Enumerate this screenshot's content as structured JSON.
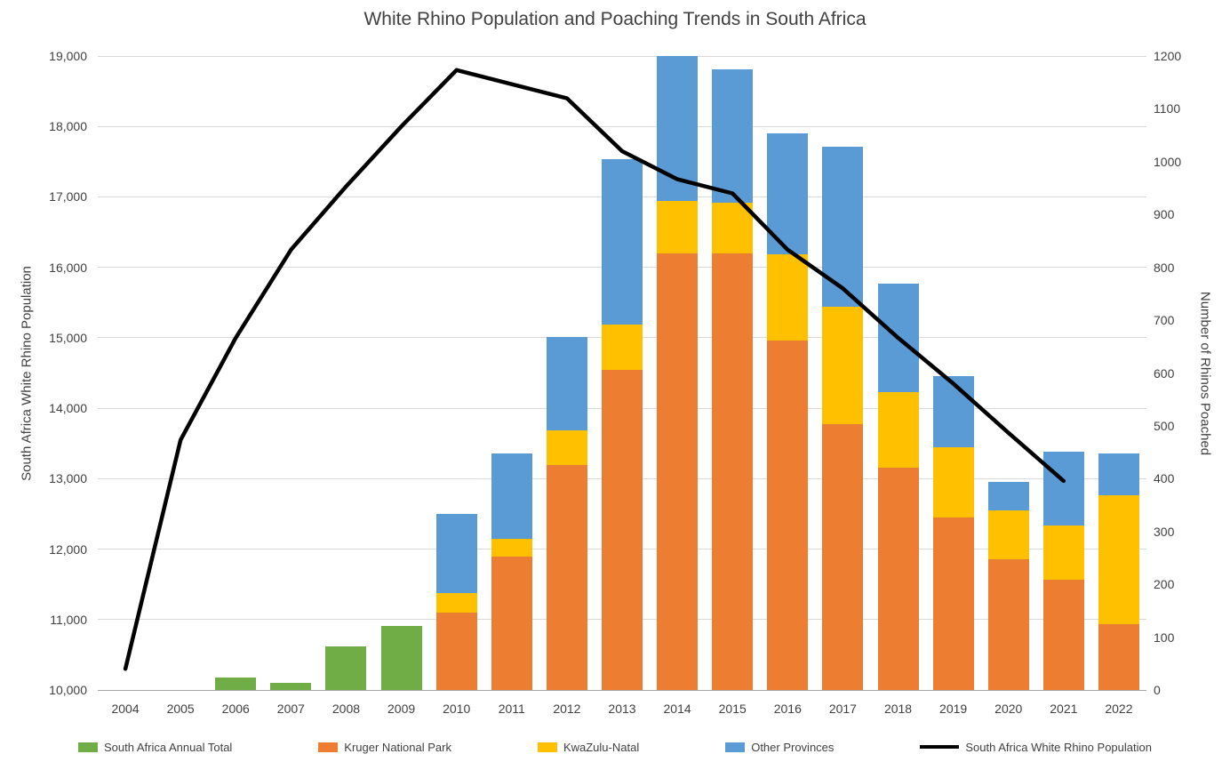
{
  "chart_data": {
    "type": "bar",
    "subtype": "stacked-bars-with-secondary-line",
    "title": "White Rhino Population and Poaching Trends in South Africa",
    "grid": true,
    "legend_position": "bottom",
    "categories": [
      "2004",
      "2005",
      "2006",
      "2007",
      "2008",
      "2009",
      "2010",
      "2011",
      "2012",
      "2013",
      "2014",
      "2015",
      "2016",
      "2017",
      "2018",
      "2019",
      "2020",
      "2021",
      "2022"
    ],
    "left_axis": {
      "label": "South Africa White Rhino Population",
      "min": 10000,
      "max": 19000,
      "step": 1000,
      "tick_labels": [
        "10,000",
        "11,000",
        "12,000",
        "13,000",
        "14,000",
        "15,000",
        "16,000",
        "17,000",
        "18,000",
        "19,000"
      ]
    },
    "right_axis": {
      "label": "Number of Rhinos Poached",
      "min": 0,
      "max": 1200,
      "step": 100,
      "tick_labels": [
        "0",
        "100",
        "200",
        "300",
        "400",
        "500",
        "600",
        "700",
        "800",
        "900",
        "1000",
        "1100",
        "1200"
      ]
    },
    "series": [
      {
        "id": "annual-total",
        "name": "South Africa Annual Total",
        "color": "#70ad47",
        "axis": "right",
        "values": [
          null,
          null,
          24,
          13,
          83,
          122,
          null,
          null,
          null,
          null,
          null,
          null,
          null,
          null,
          null,
          null,
          null,
          null,
          null
        ]
      },
      {
        "id": "kruger",
        "name": "Kruger National Park",
        "color": "#ed7d31",
        "axis": "right",
        "values": [
          null,
          null,
          null,
          null,
          null,
          null,
          146,
          252,
          425,
          606,
          827,
          826,
          662,
          504,
          421,
          327,
          247,
          209,
          124
        ]
      },
      {
        "id": "kzn",
        "name": "KwaZulu-Natal",
        "color": "#ffc000",
        "axis": "right",
        "values": [
          null,
          null,
          null,
          null,
          null,
          null,
          38,
          34,
          66,
          85,
          99,
          97,
          162,
          222,
          142,
          133,
          93,
          102,
          244
        ]
      },
      {
        "id": "other-provinces",
        "name": "Other Provinces",
        "color": "#5b9bd5",
        "axis": "right",
        "values": [
          null,
          null,
          null,
          null,
          null,
          null,
          149,
          162,
          177,
          313,
          289,
          252,
          230,
          302,
          206,
          134,
          54,
          140,
          80
        ]
      }
    ],
    "line_series": {
      "id": "population-line",
      "name": "South Africa White Rhino Population",
      "color": "#000000",
      "axis": "left",
      "values": [
        10300,
        13550,
        15000,
        16250,
        17150,
        18000,
        18800,
        18600,
        18400,
        17650,
        17250,
        17050,
        16250,
        15700,
        15000,
        14350,
        13650,
        12968,
        null
      ]
    }
  }
}
